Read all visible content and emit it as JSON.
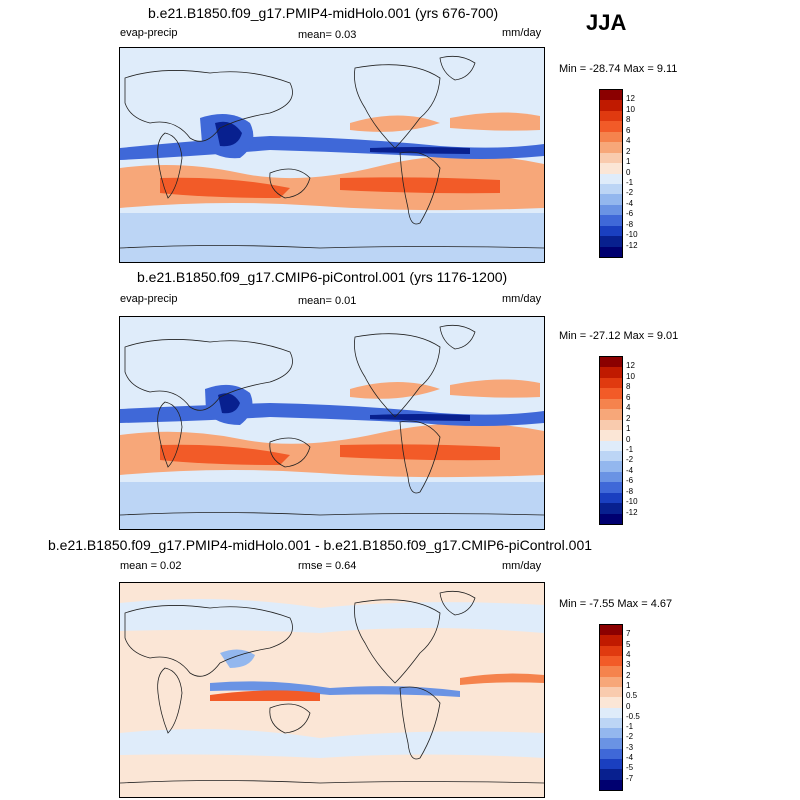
{
  "season": "JJA",
  "units": "mm/day",
  "panels": [
    {
      "title": "b.e21.B1850.f09_g17.PMIP4-midHolo.001 (yrs 676-700)",
      "left_label": "evap-precip",
      "mid_label": "mean=   0.03",
      "right_label": "mm/day",
      "minmax": "Min = -28.74 Max =   9.11",
      "colorbar_levels": [
        "12",
        "10",
        "8",
        "6",
        "4",
        "2",
        "1",
        "0",
        "-1",
        "-2",
        "-4",
        "-6",
        "-8",
        "-10",
        "-12"
      ],
      "colors": [
        "#8b0000",
        "#c01a00",
        "#e03a10",
        "#f25b28",
        "#f5834d",
        "#f7a779",
        "#f9cbae",
        "#fbe6d6",
        "#dfecfa",
        "#bcd5f5",
        "#93b7ee",
        "#6a93e4",
        "#3f68d8",
        "#1a3fc0",
        "#08208f",
        "#000070"
      ]
    },
    {
      "title": "b.e21.B1850.f09_g17.CMIP6-piControl.001 (yrs 1176-1200)",
      "left_label": "evap-precip",
      "mid_label": "mean=   0.01",
      "right_label": "mm/day",
      "minmax": "Min = -27.12 Max =   9.01",
      "colorbar_levels": [
        "12",
        "10",
        "8",
        "6",
        "4",
        "2",
        "1",
        "0",
        "-1",
        "-2",
        "-4",
        "-6",
        "-8",
        "-10",
        "-12"
      ],
      "colors": [
        "#8b0000",
        "#c01a00",
        "#e03a10",
        "#f25b28",
        "#f5834d",
        "#f7a779",
        "#f9cbae",
        "#fbe6d6",
        "#dfecfa",
        "#bcd5f5",
        "#93b7ee",
        "#6a93e4",
        "#3f68d8",
        "#1a3fc0",
        "#08208f",
        "#000070"
      ]
    },
    {
      "title": "b.e21.B1850.f09_g17.PMIP4-midHolo.001 - b.e21.B1850.f09_g17.CMIP6-piControl.001",
      "left_label": "mean =   0.02",
      "mid_label": "rmse =   0.64",
      "right_label": "mm/day",
      "minmax": "Min =  -7.55 Max =   4.67",
      "colorbar_levels": [
        "7",
        "5",
        "4",
        "3",
        "2",
        "1",
        "0.5",
        "0",
        "-0.5",
        "-1",
        "-2",
        "-3",
        "-4",
        "-5",
        "-7"
      ],
      "colors": [
        "#8b0000",
        "#c01a00",
        "#e03a10",
        "#f25b28",
        "#f5834d",
        "#f7a779",
        "#f9cbae",
        "#fbe6d6",
        "#dfecfa",
        "#bcd5f5",
        "#93b7ee",
        "#6a93e4",
        "#3f68d8",
        "#1a3fc0",
        "#08208f",
        "#000070"
      ]
    }
  ],
  "chart_data": [
    {
      "type": "heatmap",
      "title": "b.e21.B1850.f09_g17.PMIP4-midHolo.001 (yrs 676-700)",
      "variable": "evap-precip",
      "units": "mm/day",
      "mean": 0.03,
      "min": -28.74,
      "max": 9.11,
      "contour_levels": [
        -12,
        -10,
        -8,
        -6,
        -4,
        -2,
        -1,
        0,
        1,
        2,
        4,
        6,
        8,
        10,
        12
      ],
      "projection": "global cylindrical equidistant"
    },
    {
      "type": "heatmap",
      "title": "b.e21.B1850.f09_g17.CMIP6-piControl.001 (yrs 1176-1200)",
      "variable": "evap-precip",
      "units": "mm/day",
      "mean": 0.01,
      "min": -27.12,
      "max": 9.01,
      "contour_levels": [
        -12,
        -10,
        -8,
        -6,
        -4,
        -2,
        -1,
        0,
        1,
        2,
        4,
        6,
        8,
        10,
        12
      ],
      "projection": "global cylindrical equidistant"
    },
    {
      "type": "heatmap",
      "title": "b.e21.B1850.f09_g17.PMIP4-midHolo.001 - b.e21.B1850.f09_g17.CMIP6-piControl.001",
      "units": "mm/day",
      "mean": 0.02,
      "rmse": 0.64,
      "min": -7.55,
      "max": 4.67,
      "contour_levels": [
        -7,
        -5,
        -4,
        -3,
        -2,
        -1,
        -0.5,
        0,
        0.5,
        1,
        2,
        3,
        4,
        5,
        7
      ],
      "projection": "global cylindrical equidistant"
    }
  ]
}
